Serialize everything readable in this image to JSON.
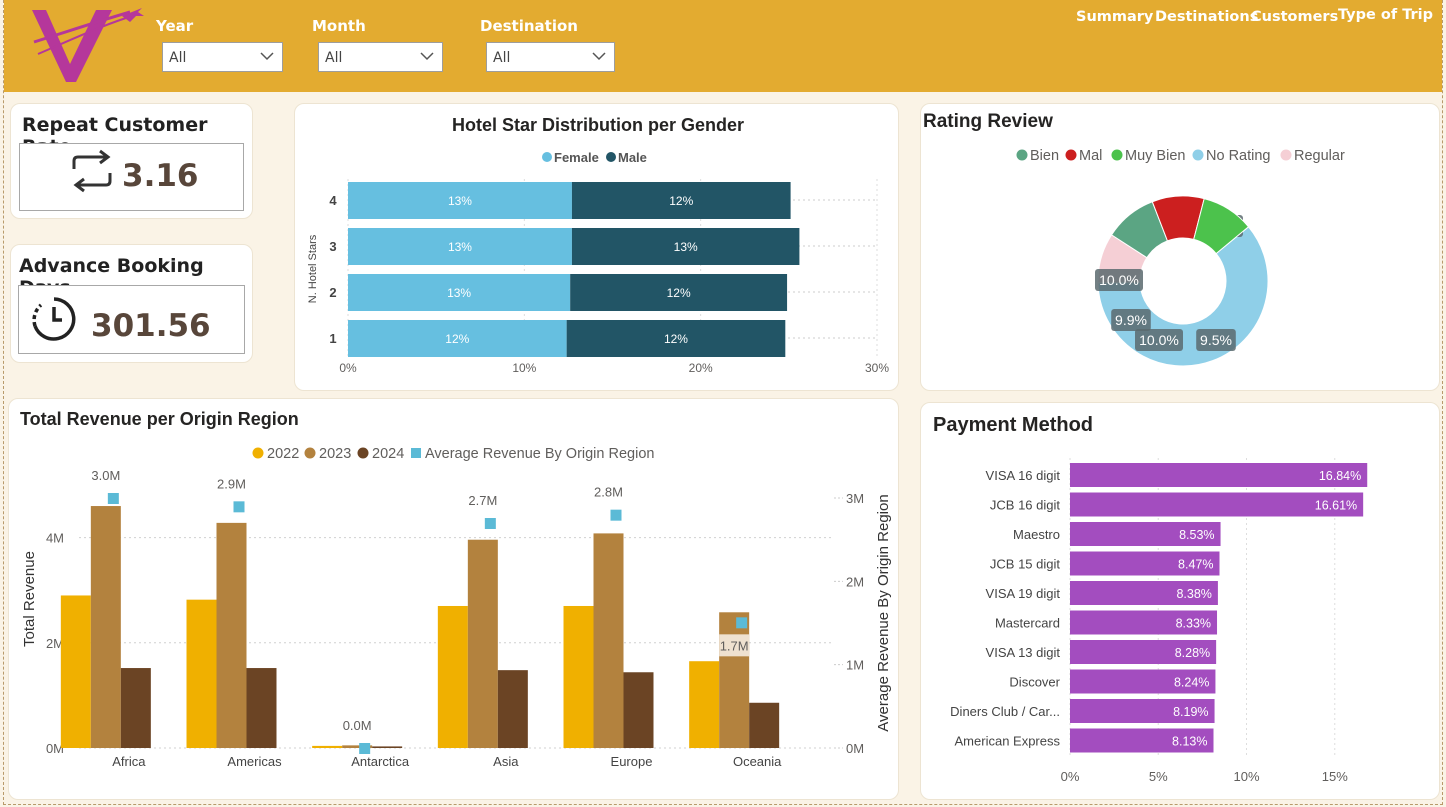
{
  "filters": [
    {
      "label": "Year",
      "value": "All"
    },
    {
      "label": "Month",
      "value": "All"
    },
    {
      "label": "Destination",
      "value": "All"
    }
  ],
  "nav": [
    "Summary",
    "Destinations",
    "Customers",
    "Type of Trip"
  ],
  "kpis": {
    "repeat": {
      "title": "Repeat Customer Rate",
      "value": "3.16",
      "icon": "repeat-icon"
    },
    "advance": {
      "title": "Advance Booking Days",
      "value": "301.56",
      "icon": "clock-icon"
    }
  },
  "colors": {
    "topbar": "#e3ab30",
    "logo": "#b5379b",
    "female": "#66bfe0",
    "male": "#225566",
    "y2022": "#f0b000",
    "y2023": "#b3823e",
    "y2024": "#6b4424",
    "avg": "#5bbad6",
    "payment": "#a34dbf"
  },
  "chart_data": [
    {
      "id": "hotel",
      "type": "bar",
      "orientation": "horizontal-stacked",
      "title": "Hotel Star Distribution per Gender",
      "ylabel": "N. Hotel Stars",
      "categories": [
        "4",
        "3",
        "2",
        "1"
      ],
      "series": [
        {
          "name": "Female",
          "values": [
            12.7,
            12.7,
            12.6,
            12.4
          ],
          "labels": [
            "13%",
            "13%",
            "13%",
            "12%"
          ]
        },
        {
          "name": "Male",
          "values": [
            12.4,
            12.9,
            12.3,
            12.4
          ],
          "labels": [
            "12%",
            "13%",
            "12%",
            "12%"
          ]
        }
      ],
      "xticks": [
        "0%",
        "10%",
        "20%",
        "30%"
      ],
      "xlim": [
        0,
        30
      ]
    },
    {
      "id": "rating",
      "type": "pie",
      "title": "Rating Review",
      "legend": [
        "Bien",
        "Mal",
        "Muy Bien",
        "No Rating",
        "Regular"
      ],
      "slices": [
        {
          "name": "No Rating",
          "value": 60.7,
          "label": "60.7%",
          "color": "#8fcfe8"
        },
        {
          "name": "Regular",
          "value": 9.5,
          "label": "9.5%",
          "color": "#f5cfd5"
        },
        {
          "name": "Bien",
          "value": 10.0,
          "label": "10.0%",
          "color": "#5ba583"
        },
        {
          "name": "Mal",
          "value": 9.9,
          "label": "9.9%",
          "color": "#cc1f1f"
        },
        {
          "name": "Muy Bien",
          "value": 10.0,
          "label": "10.0%",
          "color": "#4cc24c"
        }
      ]
    },
    {
      "id": "revenue",
      "type": "bar",
      "title": "Total Revenue per Origin Region",
      "ylabel": "Total Revenue",
      "y2label": "Average Revenue By Origin Region",
      "categories": [
        "Africa",
        "Americas",
        "Antarctica",
        "Asia",
        "Europe",
        "Oceania"
      ],
      "series": [
        {
          "name": "2022",
          "values": [
            2.9,
            2.82,
            0.04,
            2.7,
            2.7,
            1.65
          ]
        },
        {
          "name": "2023",
          "values": [
            4.6,
            4.28,
            0.05,
            3.96,
            4.08,
            2.58
          ]
        },
        {
          "name": "2024",
          "values": [
            1.52,
            1.52,
            0.03,
            1.48,
            1.44,
            0.86
          ]
        }
      ],
      "avg_series": {
        "name": "Average Revenue By Origin Region",
        "values": [
          3.0,
          2.9,
          0.0,
          2.7,
          2.8,
          1.7
        ],
        "labels": [
          "3.0M",
          "2.9M",
          "0.0M",
          "2.7M",
          "2.8M",
          "1.7M"
        ]
      },
      "yticks": [
        "0M",
        "2M",
        "4M"
      ],
      "y2ticks": [
        "0M",
        "1M",
        "2M",
        "3M"
      ],
      "ylim": [
        0,
        5
      ],
      "y2lim": [
        0,
        3.3
      ]
    },
    {
      "id": "payment",
      "type": "bar",
      "orientation": "horizontal",
      "title": "Payment Method",
      "categories": [
        "VISA 16 digit",
        "JCB 16 digit",
        "Maestro",
        "JCB 15 digit",
        "VISA 19 digit",
        "Mastercard",
        "VISA 13 digit",
        "Discover",
        "Diners Club / Car...",
        "American Express"
      ],
      "values": [
        16.84,
        16.61,
        8.53,
        8.47,
        8.38,
        8.33,
        8.28,
        8.24,
        8.19,
        8.13
      ],
      "labels": [
        "16.84%",
        "16.61%",
        "8.53%",
        "8.47%",
        "8.38%",
        "8.33%",
        "8.28%",
        "8.24%",
        "8.19%",
        "8.13%"
      ],
      "xticks": [
        "0%",
        "5%",
        "10%",
        "15%"
      ],
      "xlim": [
        0,
        20
      ]
    }
  ]
}
